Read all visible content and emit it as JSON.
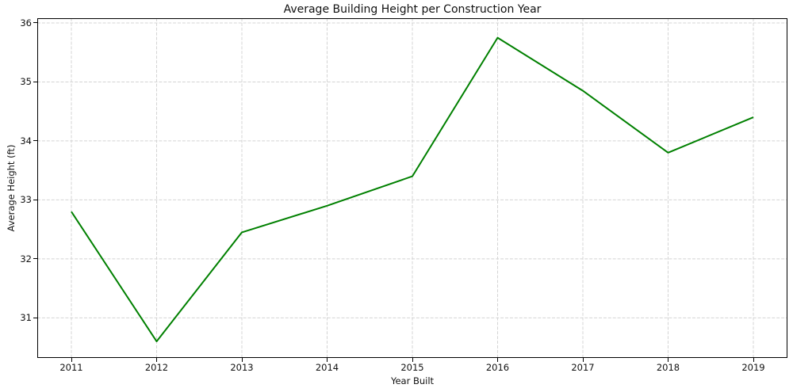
{
  "chart_data": {
    "type": "line",
    "title": "Average Building Height per Construction Year",
    "xlabel": "Year Built",
    "ylabel": "Average Height (ft)",
    "x": [
      2011,
      2012,
      2013,
      2014,
      2015,
      2016,
      2017,
      2018,
      2019
    ],
    "series": [
      {
        "name": "Average Height",
        "values": [
          32.8,
          30.6,
          32.45,
          32.9,
          33.4,
          35.75,
          34.85,
          33.8,
          34.4
        ]
      }
    ],
    "xticks": [
      2011,
      2012,
      2013,
      2014,
      2015,
      2016,
      2017,
      2018,
      2019
    ],
    "yticks": [
      31,
      32,
      33,
      34,
      35,
      36
    ],
    "xlim": [
      2010.6,
      2019.4
    ],
    "ylim": [
      30.32,
      36.08
    ],
    "grid": "both-dashed",
    "legend_position": "none",
    "line_color": "#008000",
    "grid_color": "#d4d4d4",
    "frame_color": "#000000",
    "background_color": "#ffffff"
  }
}
